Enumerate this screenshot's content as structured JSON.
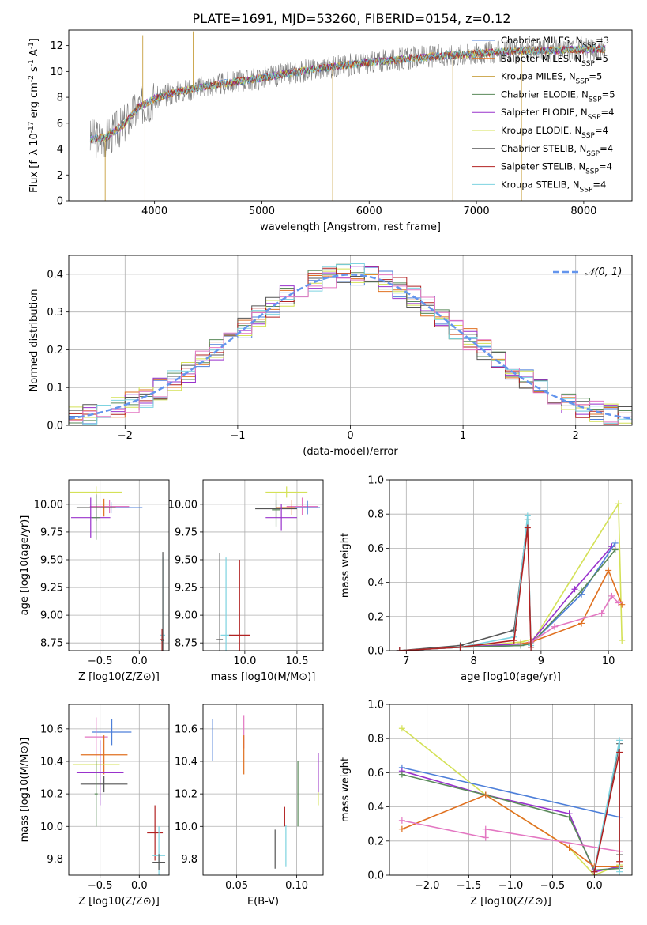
{
  "figure": {
    "title": "PLATE=1691, MJD=53260, FIBERID=0154, z=0.12"
  },
  "chart_data": [
    {
      "id": "spectrum",
      "type": "line",
      "xlabel": "wavelength [Angstrom, rest frame]",
      "ylabel": "Flux [f_λ 10^-17 erg cm^-2 s^-1 A^-1]",
      "xlim": [
        3200,
        8450
      ],
      "ylim": [
        0,
        13.2
      ],
      "xticks": [
        4000,
        5000,
        6000,
        7000,
        8000
      ],
      "yticks": [
        0,
        2,
        4,
        6,
        8,
        10,
        12
      ],
      "grid": false,
      "legend_position": "right",
      "continuum": {
        "x": [
          3400,
          3550,
          3700,
          3850,
          4000,
          4200,
          4500,
          5000,
          5500,
          6000,
          6500,
          7000,
          7500,
          8000,
          8200
        ],
        "y": [
          4.8,
          4.9,
          5.8,
          7.2,
          7.9,
          8.4,
          8.9,
          9.5,
          10.2,
          10.7,
          11.1,
          11.4,
          11.6,
          11.7,
          11.75
        ]
      },
      "spikes": [
        {
          "x": 3540,
          "y": 0
        },
        {
          "x": 3890,
          "y": 12.8
        },
        {
          "x": 3910,
          "y": 0
        },
        {
          "x": 4360,
          "y": 13.1
        },
        {
          "x": 5660,
          "y": 0
        },
        {
          "x": 6780,
          "y": 0
        },
        {
          "x": 7420,
          "y": 0
        }
      ],
      "legend": [
        "Chabrier MILES, N_SSP=3",
        "Salpeter MILES, N_SSP=5",
        "Kroupa MILES, N_SSP=5",
        "Chabrier ELODIE, N_SSP=5",
        "Salpeter ELODIE, N_SSP=4",
        "Kroupa ELODIE, N_SSP=4",
        "Chabrier STELIB, N_SSP=4",
        "Salpeter STELIB, N_SSP=4",
        "Kroupa STELIB, N_SSP=4"
      ],
      "legend_colors": [
        "#4d7fd9",
        "#e07020",
        "#c8a040",
        "#5a8a5a",
        "#9932cc",
        "#d4e157",
        "#555555",
        "#b22222",
        "#7dd3e0"
      ]
    },
    {
      "id": "residuals",
      "type": "step",
      "xlabel": "(data-model)/error",
      "ylabel": "Normed distribution",
      "xlim": [
        -2.5,
        2.5
      ],
      "ylim": [
        0,
        0.45
      ],
      "xticks": [
        -2,
        -1,
        0,
        1,
        2
      ],
      "yticks": [
        0.0,
        0.1,
        0.2,
        0.3,
        0.4
      ],
      "grid": true,
      "reference_curve": {
        "name": "𝒩(0, 1)",
        "mean": 0,
        "sigma": 1,
        "color": "#6495ed"
      },
      "bin_width": 0.125,
      "bin_start": -2.5,
      "series": [
        {
          "color": "#4d7fd9",
          "seed": 1
        },
        {
          "color": "#e07020",
          "seed": 2
        },
        {
          "color": "#5a8a5a",
          "seed": 3
        },
        {
          "color": "#9932cc",
          "seed": 4
        },
        {
          "color": "#d4e157",
          "seed": 5
        },
        {
          "color": "#555555",
          "seed": 6
        },
        {
          "color": "#b22222",
          "seed": 7
        },
        {
          "color": "#7dd3e0",
          "seed": 8
        },
        {
          "color": "#e377c2",
          "seed": 9
        }
      ]
    },
    {
      "id": "age-vs-Z",
      "type": "errorbar",
      "xlabel": "Z [log10(Z/Z⊙)]",
      "ylabel": "age [log10(age/yr)]",
      "xlim": [
        -0.9,
        0.38
      ],
      "ylim": [
        8.68,
        10.22
      ],
      "xticks": [
        -0.5,
        0.0
      ],
      "yticks": [
        8.75,
        9.0,
        9.25,
        9.5,
        9.75,
        10.0
      ],
      "grid": true,
      "points": [
        {
          "x": -0.55,
          "y": 10.11,
          "xerr": 0.33,
          "yerr": 0.05,
          "color": "#d4e157"
        },
        {
          "x": -0.38,
          "y": 9.98,
          "xerr": 0.25,
          "yerr": 0.06,
          "color": "#e377c2"
        },
        {
          "x": -0.45,
          "y": 9.97,
          "xerr": 0.3,
          "yerr": 0.08,
          "color": "#e07020"
        },
        {
          "x": -0.36,
          "y": 9.97,
          "xerr": 0.4,
          "yerr": 0.05,
          "color": "#4d7fd9"
        },
        {
          "x": -0.55,
          "y": 9.97,
          "xerr": 0.25,
          "yerr": 0.12,
          "color": "#555555"
        },
        {
          "x": -0.62,
          "y": 9.88,
          "xerr": 0.25,
          "yerr": 0.18,
          "color": "#9932cc"
        },
        {
          "x": -0.55,
          "y": 9.88,
          "xerr": 0.05,
          "yerr": 0.2,
          "color": "#5a8a5a"
        },
        {
          "x": 0.3,
          "y": 8.82,
          "xerr": 0.03,
          "yerr": 0.7,
          "color": "#7dd3e0"
        },
        {
          "x": 0.29,
          "y": 8.78,
          "xerr": 0.02,
          "yerr": 0.1,
          "color": "#b22222"
        },
        {
          "x": 0.3,
          "y": 8.77,
          "xerr": 0.02,
          "yerr": 0.8,
          "color": "#555555"
        }
      ]
    },
    {
      "id": "age-vs-mass",
      "type": "errorbar",
      "xlabel": "mass [log10(M/M⊙)]",
      "ylabel": "",
      "xlim": [
        9.6,
        10.75
      ],
      "ylim": [
        8.68,
        10.22
      ],
      "xticks": [
        10.0,
        10.5
      ],
      "yticks": [
        8.75,
        9.0,
        9.25,
        9.5,
        9.75,
        10.0
      ],
      "grid": true,
      "points": [
        {
          "x": 10.4,
          "y": 10.11,
          "xerr": 0.2,
          "yerr": 0.05,
          "color": "#d4e157"
        },
        {
          "x": 10.55,
          "y": 9.98,
          "xerr": 0.15,
          "yerr": 0.08,
          "color": "#e377c2"
        },
        {
          "x": 10.45,
          "y": 9.97,
          "xerr": 0.15,
          "yerr": 0.07,
          "color": "#e07020"
        },
        {
          "x": 10.6,
          "y": 9.97,
          "xerr": 0.12,
          "yerr": 0.06,
          "color": "#4d7fd9"
        },
        {
          "x": 10.3,
          "y": 9.96,
          "xerr": 0.2,
          "yerr": 0.08,
          "color": "#555555"
        },
        {
          "x": 10.35,
          "y": 9.88,
          "xerr": 0.15,
          "yerr": 0.12,
          "color": "#9932cc"
        },
        {
          "x": 10.3,
          "y": 9.95,
          "xerr": 0.04,
          "yerr": 0.15,
          "color": "#5a8a5a"
        },
        {
          "x": 9.82,
          "y": 8.82,
          "xerr": 0.05,
          "yerr": 0.7,
          "color": "#7dd3e0"
        },
        {
          "x": 9.95,
          "y": 8.82,
          "xerr": 0.1,
          "yerr": 0.68,
          "color": "#b22222"
        },
        {
          "x": 9.76,
          "y": 8.78,
          "xerr": 0.03,
          "yerr": 0.78,
          "color": "#555555"
        }
      ]
    },
    {
      "id": "mass-weight-vs-age",
      "type": "line",
      "xlabel": "age [log10(age/yr)]",
      "ylabel": "mass weight",
      "xlim": [
        6.75,
        10.35
      ],
      "ylim": [
        0,
        1.0
      ],
      "xticks": [
        7,
        8,
        9,
        10
      ],
      "yticks": [
        0.0,
        0.2,
        0.4,
        0.6,
        0.8,
        1.0
      ],
      "grid": true,
      "series": [
        {
          "color": "#d4e157",
          "x": [
            6.9,
            7.8,
            8.7,
            8.9,
            10.15,
            10.2
          ],
          "y": [
            0.0,
            0.02,
            0.05,
            0.07,
            0.86,
            0.06
          ]
        },
        {
          "color": "#9932cc",
          "x": [
            6.9,
            7.8,
            8.7,
            8.85,
            9.5,
            10.05
          ],
          "y": [
            0.0,
            0.02,
            0.04,
            0.05,
            0.36,
            0.61
          ]
        },
        {
          "color": "#4d7fd9",
          "x": [
            6.9,
            7.8,
            8.7,
            8.85,
            9.6,
            10.1
          ],
          "y": [
            0.0,
            0.02,
            0.03,
            0.04,
            0.33,
            0.63
          ]
        },
        {
          "color": "#5a8a5a",
          "x": [
            6.9,
            7.8,
            8.7,
            8.85,
            9.6,
            10.1
          ],
          "y": [
            0.0,
            0.02,
            0.03,
            0.04,
            0.35,
            0.59
          ]
        },
        {
          "color": "#e07020",
          "x": [
            8.7,
            8.85,
            9.6,
            10.0,
            10.2
          ],
          "y": [
            0.04,
            0.05,
            0.16,
            0.47,
            0.27
          ]
        },
        {
          "color": "#e377c2",
          "x": [
            8.85,
            9.2,
            9.9,
            10.05,
            10.15
          ],
          "y": [
            0.05,
            0.14,
            0.22,
            0.32,
            0.28
          ]
        },
        {
          "color": "#555555",
          "x": [
            6.9,
            7.8,
            8.6,
            8.8,
            8.85
          ],
          "y": [
            0.0,
            0.03,
            0.12,
            0.77,
            0.02
          ]
        },
        {
          "color": "#7dd3e0",
          "x": [
            6.9,
            7.8,
            8.6,
            8.8,
            8.85
          ],
          "y": [
            0.0,
            0.02,
            0.08,
            0.79,
            0.03
          ]
        },
        {
          "color": "#b22222",
          "x": [
            6.9,
            7.8,
            8.6,
            8.8,
            8.85
          ],
          "y": [
            0.0,
            0.02,
            0.06,
            0.72,
            0.02
          ]
        }
      ]
    },
    {
      "id": "mass-vs-Z",
      "type": "errorbar",
      "xlabel": "Z [log10(Z/Z⊙)]",
      "ylabel": "mass [log10(M/M⊙)]",
      "xlim": [
        -0.9,
        0.38
      ],
      "ylim": [
        9.7,
        10.75
      ],
      "xticks": [
        -0.5,
        0.0
      ],
      "yticks": [
        9.8,
        10.0,
        10.2,
        10.4,
        10.6
      ],
      "grid": true,
      "points": [
        {
          "x": -0.35,
          "y": 10.58,
          "xerr": 0.25,
          "yerr": 0.08,
          "color": "#4d7fd9"
        },
        {
          "x": -0.55,
          "y": 10.55,
          "xerr": 0.15,
          "yerr": 0.12,
          "color": "#e377c2"
        },
        {
          "x": -0.45,
          "y": 10.44,
          "xerr": 0.3,
          "yerr": 0.12,
          "color": "#e07020"
        },
        {
          "x": -0.55,
          "y": 10.38,
          "xerr": 0.3,
          "yerr": 0.05,
          "color": "#d4e157"
        },
        {
          "x": -0.5,
          "y": 10.33,
          "xerr": 0.3,
          "yerr": 0.2,
          "color": "#9932cc"
        },
        {
          "x": -0.45,
          "y": 10.26,
          "xerr": 0.3,
          "yerr": 0.05,
          "color": "#555555"
        },
        {
          "x": -0.55,
          "y": 10.2,
          "xerr": 0.02,
          "yerr": 0.2,
          "color": "#5a8a5a"
        },
        {
          "x": 0.2,
          "y": 9.96,
          "xerr": 0.1,
          "yerr": 0.17,
          "color": "#b22222"
        },
        {
          "x": 0.25,
          "y": 9.82,
          "xerr": 0.08,
          "yerr": 0.18,
          "color": "#7dd3e0"
        },
        {
          "x": 0.25,
          "y": 9.78,
          "xerr": 0.08,
          "yerr": 0.05,
          "color": "#555555"
        }
      ]
    },
    {
      "id": "mass-vs-ebv",
      "type": "errorbar",
      "xlabel": "E(B-V)",
      "ylabel": "",
      "xlim": [
        0.022,
        0.122
      ],
      "ylim": [
        9.7,
        10.75
      ],
      "xticks": [
        0.05,
        0.1
      ],
      "yticks": [
        9.8,
        10.0,
        10.2,
        10.4,
        10.6
      ],
      "grid": true,
      "points": [
        {
          "x": 0.03,
          "y": 10.53,
          "xerr": 0,
          "yerr": 0.13,
          "color": "#4d7fd9"
        },
        {
          "x": 0.056,
          "y": 10.58,
          "xerr": 0,
          "yerr": 0.1,
          "color": "#e377c2"
        },
        {
          "x": 0.056,
          "y": 10.44,
          "xerr": 0,
          "yerr": 0.12,
          "color": "#e07020"
        },
        {
          "x": 0.082,
          "y": 9.86,
          "xerr": 0,
          "yerr": 0.12,
          "color": "#555555"
        },
        {
          "x": 0.09,
          "y": 10.06,
          "xerr": 0,
          "yerr": 0.06,
          "color": "#b22222"
        },
        {
          "x": 0.091,
          "y": 9.88,
          "xerr": 0,
          "yerr": 0.13,
          "color": "#7dd3e0"
        },
        {
          "x": 0.101,
          "y": 10.2,
          "xerr": 0,
          "yerr": 0.2,
          "color": "#5a8a5a"
        },
        {
          "x": 0.118,
          "y": 10.29,
          "xerr": 0,
          "yerr": 0.16,
          "color": "#d4e157"
        },
        {
          "x": 0.118,
          "y": 10.33,
          "xerr": 0,
          "yerr": 0.12,
          "color": "#9932cc"
        }
      ]
    },
    {
      "id": "mass-weight-vs-Z",
      "type": "line",
      "xlabel": "Z [log10(Z/Z⊙)]",
      "ylabel": "mass weight",
      "xlim": [
        -2.45,
        0.45
      ],
      "ylim": [
        0,
        1.0
      ],
      "xticks": [
        -2.0,
        -1.5,
        -1.0,
        -0.5,
        0.0
      ],
      "yticks": [
        0.0,
        0.2,
        0.4,
        0.6,
        0.8,
        1.0
      ],
      "grid": true,
      "series": [
        {
          "color": "#d4e157",
          "x": [
            -2.3,
            -1.3,
            -0.3,
            0.0,
            0.3
          ],
          "y": [
            0.86,
            0.47,
            0.16,
            0.0,
            0.06
          ]
        },
        {
          "color": "#4d7fd9",
          "x": [
            -2.3,
            0.3
          ],
          "y": [
            0.63,
            0.34
          ]
        },
        {
          "color": "#9932cc",
          "x": [
            -2.3,
            -1.3,
            -0.3,
            0.0,
            0.3
          ],
          "y": [
            0.61,
            0.47,
            0.36,
            0.02,
            0.05
          ]
        },
        {
          "color": "#5a8a5a",
          "x": [
            -2.3,
            -1.3,
            -0.3,
            0.0,
            0.3
          ],
          "y": [
            0.59,
            0.47,
            0.34,
            0.03,
            0.04
          ]
        },
        {
          "color": "#e07020",
          "x": [
            -2.3,
            -1.3,
            -0.3,
            0.0,
            0.3
          ],
          "y": [
            0.27,
            0.47,
            0.16,
            0.05,
            0.05
          ]
        },
        {
          "color": "#e377c2",
          "x": [
            -2.3,
            -1.3,
            -1.3,
            0.3
          ],
          "y": [
            0.32,
            0.22,
            0.27,
            0.14
          ]
        },
        {
          "color": "#555555",
          "x": [
            0.0,
            0.3,
            0.3
          ],
          "y": [
            0.02,
            0.77,
            0.12
          ]
        },
        {
          "color": "#7dd3e0",
          "x": [
            0.0,
            0.3,
            0.3
          ],
          "y": [
            0.03,
            0.79,
            0.02
          ]
        },
        {
          "color": "#b22222",
          "x": [
            0.0,
            0.3,
            0.3
          ],
          "y": [
            0.02,
            0.72,
            0.08
          ]
        }
      ]
    }
  ]
}
